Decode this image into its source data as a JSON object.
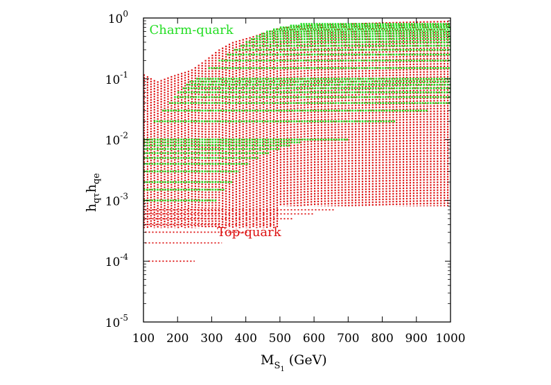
{
  "chart_data": {
    "type": "scatter",
    "title": "",
    "xlabel": {
      "main": "M",
      "sub": "S",
      "subsub": "1",
      "unit": "(GeV)"
    },
    "ylabel": {
      "p1": "h",
      "s1": "qτ",
      "p2": "h",
      "s2": "qe"
    },
    "xlim": [
      100,
      1000
    ],
    "ylim": [
      1e-05,
      1
    ],
    "yscale": "log",
    "x_ticks": [
      100,
      200,
      300,
      400,
      500,
      600,
      700,
      800,
      900,
      1000
    ],
    "x_tick_labels": [
      "100",
      "200",
      "300",
      "400",
      "500",
      "600",
      "700",
      "800",
      "900",
      "1000"
    ],
    "y_ticks": [
      1e-05,
      0.0001,
      0.001,
      0.01,
      0.1,
      1
    ],
    "y_tick_labels": [
      {
        "base": "10",
        "exp": "-5"
      },
      {
        "base": "10",
        "exp": "-4"
      },
      {
        "base": "10",
        "exp": "-3"
      },
      {
        "base": "10",
        "exp": "-2"
      },
      {
        "base": "10",
        "exp": "-1"
      },
      {
        "base": "10",
        "exp": "0"
      }
    ],
    "grid": false,
    "annotations": [
      {
        "text": "Charm-quark",
        "x": 105,
        "y": 0.55,
        "color": "#22dd22"
      },
      {
        "text": "Top-quark",
        "x": 580,
        "y": 0.00026,
        "color": "#dd1111"
      }
    ],
    "series": [
      {
        "name": "",
        "color": "#dd1111",
        "marker": "vertical-dotted-columns",
        "columns": [
          {
            "x_min": 100,
            "x_max": 500,
            "y_upper": [
              [
                100,
                0.12
              ],
              [
                140,
                0.09
              ],
              [
                180,
                0.11
              ],
              [
                240,
                0.14
              ],
              [
                280,
                0.2
              ],
              [
                320,
                0.3
              ],
              [
                360,
                0.4
              ],
              [
                420,
                0.5
              ],
              [
                500,
                0.7
              ]
            ],
            "y_lower": 0.00035
          },
          {
            "x_min": 500,
            "x_max": 1000,
            "y_upper": [
              [
                500,
                0.7
              ],
              [
                600,
                0.78
              ],
              [
                700,
                0.82
              ],
              [
                800,
                0.85
              ],
              [
                900,
                0.88
              ],
              [
                1000,
                0.9
              ]
            ],
            "y_lower": 0.0008
          }
        ],
        "horizontal_dashes": [
          {
            "y": 0.0001,
            "x_min": 115,
            "x_max": 250
          },
          {
            "y": 0.0002,
            "x_min": 105,
            "x_max": 330
          },
          {
            "y": 0.0003,
            "x_min": 105,
            "x_max": 410
          },
          {
            "y": 0.0004,
            "x_min": 105,
            "x_max": 480
          },
          {
            "y": 0.0005,
            "x_min": 105,
            "x_max": 540
          },
          {
            "y": 0.0006,
            "x_min": 105,
            "x_max": 600
          },
          {
            "y": 0.0007,
            "x_min": 105,
            "x_max": 660
          }
        ]
      },
      {
        "name": "",
        "color": "#22dd22",
        "marker": "horizontal-dotted-bands",
        "bands": [
          {
            "y": 0.001,
            "x_min": 100,
            "x_max": 315
          },
          {
            "y": 0.0015,
            "x_min": 100,
            "x_max": 340
          },
          {
            "y": 0.002,
            "x_min": 100,
            "x_max": 360
          },
          {
            "y": 0.003,
            "x_min": 100,
            "x_max": 380
          },
          {
            "y": 0.004,
            "x_min": 100,
            "x_max": 410
          },
          {
            "y": 0.005,
            "x_min": 100,
            "x_max": 440
          },
          {
            "y": 0.006,
            "x_min": 100,
            "x_max": 470
          },
          {
            "y": 0.007,
            "x_min": 100,
            "x_max": 500
          },
          {
            "y": 0.008,
            "x_min": 100,
            "x_max": 530
          },
          {
            "y": 0.009,
            "x_min": 100,
            "x_max": 560
          },
          {
            "y": 0.01,
            "x_min": 100,
            "x_max": 700
          },
          {
            "y": 0.02,
            "x_min": 130,
            "x_max": 840
          },
          {
            "y": 0.03,
            "x_min": 155,
            "x_max": 935
          },
          {
            "y": 0.04,
            "x_min": 175,
            "x_max": 1000
          },
          {
            "y": 0.05,
            "x_min": 190,
            "x_max": 1000
          },
          {
            "y": 0.06,
            "x_min": 200,
            "x_max": 1000
          },
          {
            "y": 0.07,
            "x_min": 215,
            "x_max": 1000
          },
          {
            "y": 0.08,
            "x_min": 225,
            "x_max": 1000
          },
          {
            "y": 0.09,
            "x_min": 235,
            "x_max": 1000
          },
          {
            "y": 0.1,
            "x_min": 255,
            "x_max": 1000
          },
          {
            "y": 0.15,
            "x_min": 290,
            "x_max": 1000
          },
          {
            "y": 0.2,
            "x_min": 320,
            "x_max": 1000
          },
          {
            "y": 0.25,
            "x_min": 345,
            "x_max": 1000
          },
          {
            "y": 0.3,
            "x_min": 365,
            "x_max": 1000
          },
          {
            "y": 0.35,
            "x_min": 385,
            "x_max": 1000
          },
          {
            "y": 0.4,
            "x_min": 400,
            "x_max": 1000
          },
          {
            "y": 0.45,
            "x_min": 415,
            "x_max": 1000
          },
          {
            "y": 0.5,
            "x_min": 430,
            "x_max": 1000
          },
          {
            "y": 0.55,
            "x_min": 445,
            "x_max": 1000
          },
          {
            "y": 0.6,
            "x_min": 460,
            "x_max": 1000
          },
          {
            "y": 0.65,
            "x_min": 480,
            "x_max": 1000
          },
          {
            "y": 0.7,
            "x_min": 500,
            "x_max": 1000
          },
          {
            "y": 0.75,
            "x_min": 530,
            "x_max": 1000
          },
          {
            "y": 0.8,
            "x_min": 560,
            "x_max": 1000
          }
        ]
      }
    ]
  }
}
